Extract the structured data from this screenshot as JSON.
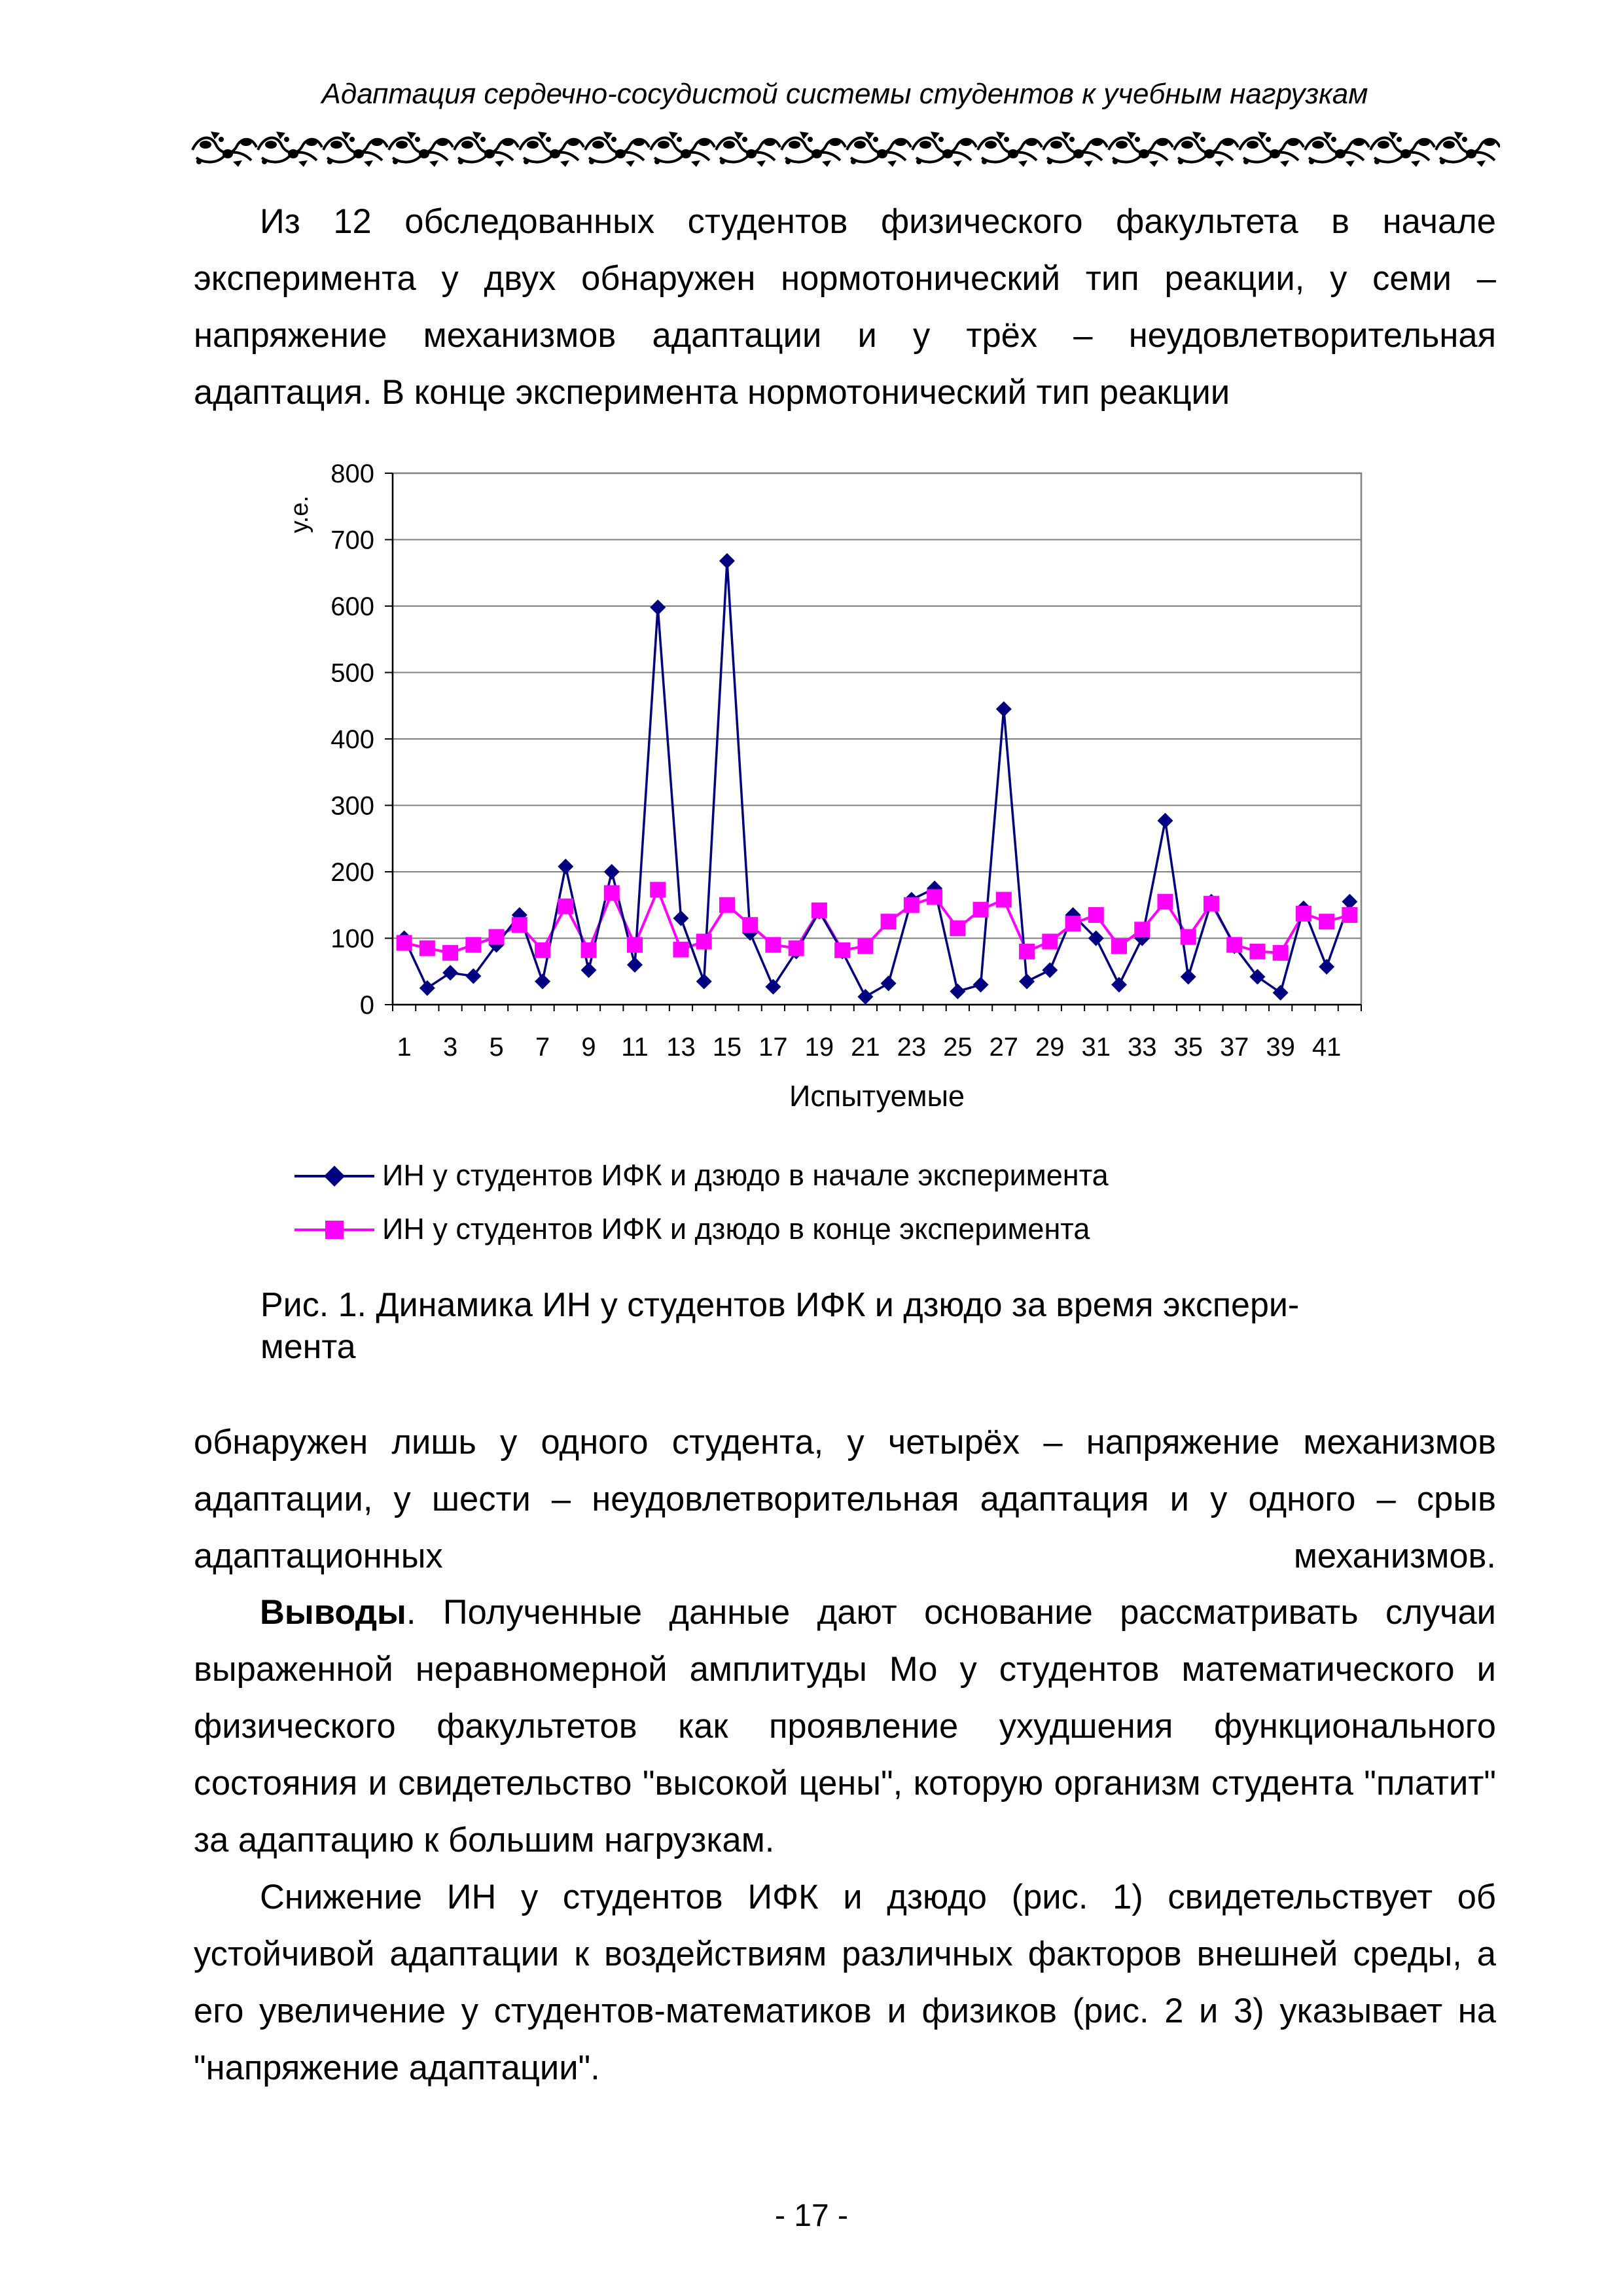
{
  "running_header": "Адаптация сердечно-сосудистой системы студентов к учебным нагрузкам",
  "paragraphs": {
    "p1": "Из 12 обследованных студентов физического факультета в начале эксперимента у двух обнаружен нормотонический тип реакции, у семи – напряжение механизмов адаптации и у трёх – неудовлетворительная адаптация. В конце эксперимента нормотонический тип реакции",
    "p2": "обнаружен лишь у одного студента, у четырёх – напряжение механизмов адаптации, у шести – неудовлетворительная адаптация и у одного – срыв адаптационных механизмов.",
    "p3_bold": "Выводы",
    "p3_rest": ". Полученные данные дают основание рассматривать случаи выраженной неравномерной амплитуды Мо у студентов математического и физического факультетов как проявление ухудшения функционального состояния и свидетельство \"высокой цены\", которую организм студента \"платит\" за адаптацию к большим нагрузкам.",
    "p4": "Снижение ИН у студентов ИФК и дзюдо (рис. 1) свидетельствует об устойчивой адаптации к воздействиям различных факторов внешней среды, а его увеличение у студентов-математиков и физиков (рис. 2 и 3) указывает на \"напряжение адаптации\"."
  },
  "figure_caption": "Рис. 1. Динамика ИН у студентов ИФК и дзюдо за время экспери-\nмента",
  "page_number": "- 17 -",
  "chart_data": {
    "type": "line",
    "title": "",
    "xlabel": "Испытуемые",
    "ylabel": "у.е.",
    "ylim": [
      0,
      800
    ],
    "yticks": [
      0,
      100,
      200,
      300,
      400,
      500,
      600,
      700,
      800
    ],
    "xtick_labels": [
      "1",
      "3",
      "5",
      "7",
      "9",
      "11",
      "13",
      "15",
      "17",
      "19",
      "21",
      "23",
      "25",
      "27",
      "29",
      "31",
      "33",
      "35",
      "37",
      "39",
      "41"
    ],
    "x": [
      1,
      2,
      3,
      4,
      5,
      6,
      7,
      8,
      9,
      10,
      11,
      12,
      13,
      14,
      15,
      16,
      17,
      18,
      19,
      20,
      21,
      22,
      23,
      24,
      25,
      26,
      27,
      28,
      29,
      30,
      31,
      32,
      33,
      34,
      35,
      36,
      37,
      38,
      39,
      40,
      41,
      42
    ],
    "grid": "horizontal",
    "legend_position": "bottom",
    "series": [
      {
        "name": "ИН у студентов ИФК и дзюдо в начале эксперимента",
        "color": "#000080",
        "marker": "diamond",
        "values": [
          100,
          25,
          48,
          43,
          90,
          135,
          35,
          208,
          52,
          200,
          60,
          598,
          130,
          35,
          668,
          108,
          27,
          80,
          140,
          80,
          12,
          32,
          158,
          175,
          20,
          30,
          445,
          35,
          52,
          135,
          100,
          30,
          100,
          277,
          42,
          155,
          88,
          42,
          18,
          145,
          57,
          155
        ]
      },
      {
        "name": "ИН у студентов ИФК и дзюдо в конце эксперимента",
        "color": "#FF00FF",
        "marker": "square",
        "values": [
          93,
          85,
          78,
          90,
          102,
          120,
          82,
          148,
          82,
          168,
          90,
          173,
          83,
          95,
          150,
          120,
          90,
          85,
          142,
          82,
          88,
          125,
          150,
          162,
          115,
          143,
          158,
          80,
          95,
          122,
          135,
          88,
          113,
          155,
          102,
          152,
          90,
          80,
          78,
          137,
          125,
          135
        ]
      }
    ]
  }
}
